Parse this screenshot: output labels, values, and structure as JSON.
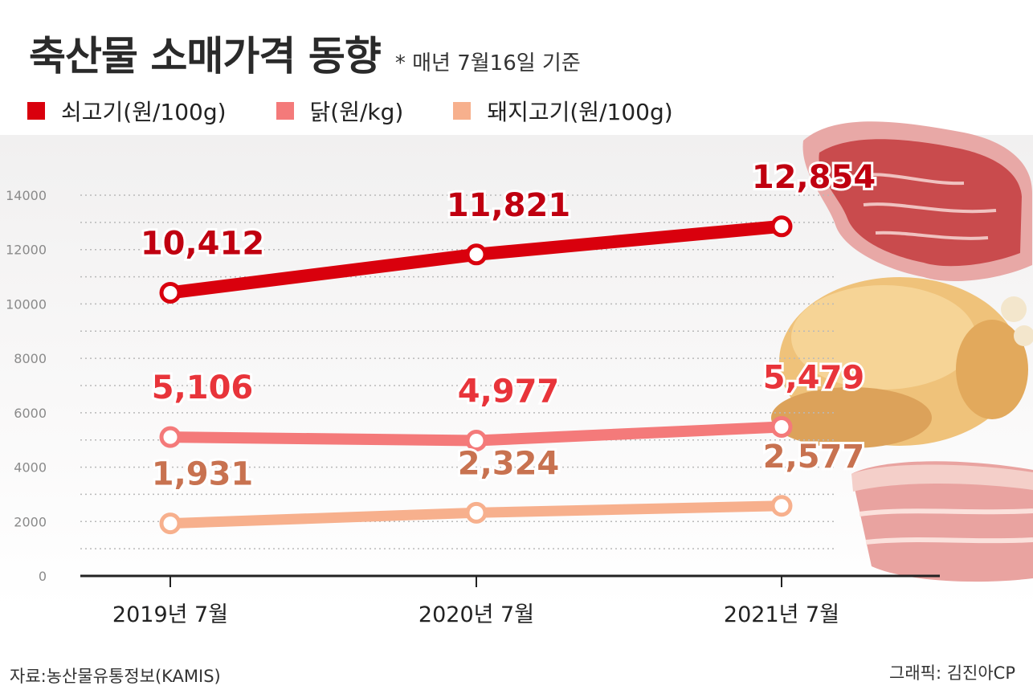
{
  "header": {
    "title": "축산물 소매가격 동향",
    "subtitle": "* 매년 7월16일 기준"
  },
  "legend": [
    {
      "label": "쇠고기(원/100g)",
      "color": "#d9000d"
    },
    {
      "label": "닭(원/kg)",
      "color": "#f47a7a"
    },
    {
      "label": "돼지고기(원/100g)",
      "color": "#f7b08d"
    }
  ],
  "colors": {
    "beef": "#d9000d",
    "chicken": "#f47a7a",
    "pork": "#f7b08d",
    "beef_label": "#c00010",
    "chicken_label": "#e8343a",
    "pork_label": "#c87250"
  },
  "chart_data": {
    "type": "line",
    "title": "축산물 소매가격 동향",
    "categories": [
      "2019년 7월",
      "2020년 7월",
      "2021년 7월"
    ],
    "series": [
      {
        "name": "쇠고기(원/100g)",
        "values": [
          10412,
          11821,
          12854
        ],
        "labels": [
          "10,412",
          "11,821",
          "12,854"
        ]
      },
      {
        "name": "닭(원/kg)",
        "values": [
          5106,
          4977,
          5479
        ],
        "labels": [
          "5,106",
          "4,977",
          "5,479"
        ]
      },
      {
        "name": "돼지고기(원/100g)",
        "values": [
          1931,
          2324,
          2577
        ],
        "labels": [
          "1,931",
          "2,324",
          "2,577"
        ]
      }
    ],
    "yticks": [
      0,
      2000,
      4000,
      6000,
      8000,
      10000,
      12000,
      14000
    ],
    "ylim": [
      0,
      14000
    ],
    "grid": true
  },
  "footer": {
    "source": "자료:농산물유통정보(KAMIS)",
    "credit": "그래픽: 김진아CP"
  }
}
